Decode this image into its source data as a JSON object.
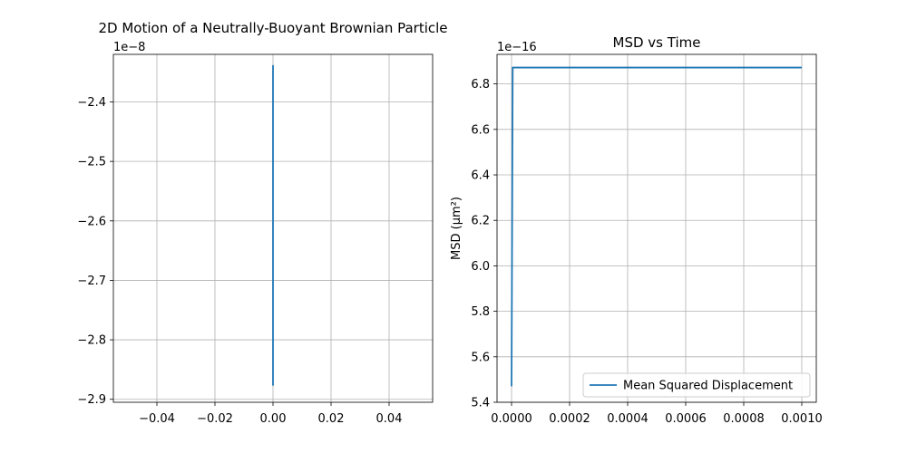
{
  "chart_data": [
    {
      "type": "line",
      "title": "2D Motion of a Neutrally-Buoyant Brownian Particle",
      "xlabel": "",
      "ylabel": "",
      "y_offset_label": "1e−8",
      "xlim": [
        -0.055,
        0.055
      ],
      "ylim": [
        -2.905e-08,
        -2.32e-08
      ],
      "x_ticks": [
        -0.04,
        -0.02,
        0.0,
        0.02,
        0.04
      ],
      "x_tick_labels": [
        "−0.04",
        "−0.02",
        "0.00",
        "0.02",
        "0.04"
      ],
      "y_ticks": [
        -2.9e-08,
        -2.8e-08,
        -2.7e-08,
        -2.6e-08,
        -2.5e-08,
        -2.4e-08
      ],
      "y_tick_labels": [
        "−2.9",
        "−2.8",
        "−2.7",
        "−2.6",
        "−2.5",
        "−2.4"
      ],
      "grid": true,
      "series": [
        {
          "x": [
            0.0,
            0.0
          ],
          "y": [
            -2.877e-08,
            -2.338e-08
          ],
          "color": "#1f77b4"
        }
      ]
    },
    {
      "type": "line",
      "title": "MSD vs Time",
      "xlabel": "",
      "ylabel": "MSD (μm²)",
      "y_offset_label": "1e−16",
      "xlim": [
        -5e-05,
        0.00105
      ],
      "ylim": [
        5.4e-16,
        6.93e-16
      ],
      "x_ticks": [
        0.0,
        0.0002,
        0.0004,
        0.0006,
        0.0008,
        0.001
      ],
      "x_tick_labels": [
        "0.0000",
        "0.0002",
        "0.0004",
        "0.0006",
        "0.0008",
        "0.0010"
      ],
      "y_ticks": [
        5.4e-16,
        5.6e-16,
        5.8e-16,
        6e-16,
        6.2e-16,
        6.4e-16,
        6.6e-16,
        6.8e-16
      ],
      "y_tick_labels": [
        "5.4",
        "5.6",
        "5.8",
        "6.0",
        "6.2",
        "6.4",
        "6.6",
        "6.8"
      ],
      "grid": true,
      "legend_position": "lower-right",
      "series": [
        {
          "name": "Mean Squared Displacement",
          "x": [
            0.0,
            4e-06,
            0.001
          ],
          "y": [
            5.47e-16,
            6.872e-16,
            6.872e-16
          ],
          "color": "#1f77b4"
        }
      ]
    }
  ]
}
